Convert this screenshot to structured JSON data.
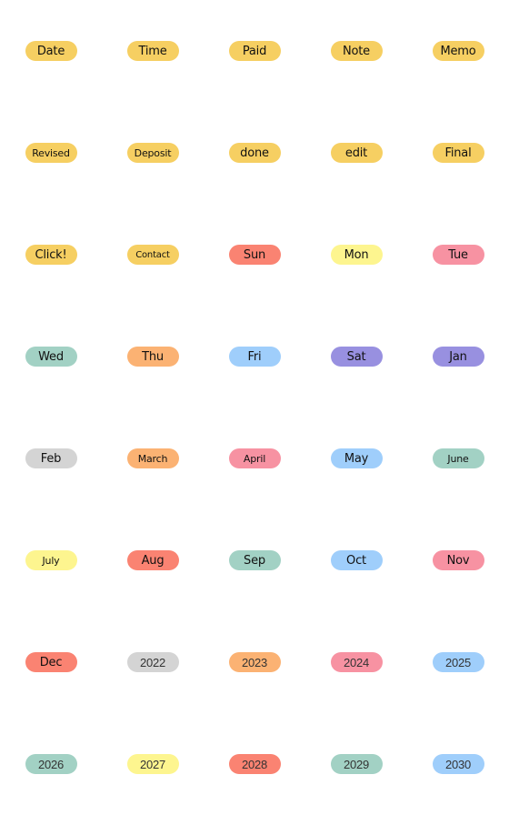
{
  "colors": {
    "yellow_orange": "#f6cf62",
    "salmon": "#fa8372",
    "light_yellow": "#fdf58f",
    "pink": "#f792a2",
    "teal": "#a2d1c4",
    "orange": "#fbb273",
    "light_blue": "#9fcefb",
    "purple": "#9890e0",
    "gray": "#d4d4d4"
  },
  "stickers": [
    {
      "label": "Date",
      "color": "#f6cf62"
    },
    {
      "label": "Time",
      "color": "#f6cf62"
    },
    {
      "label": "Paid",
      "color": "#f6cf62"
    },
    {
      "label": "Note",
      "color": "#f6cf62"
    },
    {
      "label": "Memo",
      "color": "#f6cf62"
    },
    {
      "label": "Revised",
      "color": "#f6cf62"
    },
    {
      "label": "Deposit",
      "color": "#f6cf62"
    },
    {
      "label": "done",
      "color": "#f6cf62"
    },
    {
      "label": "edit",
      "color": "#f6cf62"
    },
    {
      "label": "Final",
      "color": "#f6cf62"
    },
    {
      "label": "Click!",
      "color": "#f6cf62"
    },
    {
      "label": "Contact",
      "color": "#f6cf62"
    },
    {
      "label": "Sun",
      "color": "#fa8372"
    },
    {
      "label": "Mon",
      "color": "#fdf58f"
    },
    {
      "label": "Tue",
      "color": "#f792a2"
    },
    {
      "label": "Wed",
      "color": "#a2d1c4"
    },
    {
      "label": "Thu",
      "color": "#fbb273"
    },
    {
      "label": "Fri",
      "color": "#9fcefb"
    },
    {
      "label": "Sat",
      "color": "#9890e0"
    },
    {
      "label": "Jan",
      "color": "#9890e0"
    },
    {
      "label": "Feb",
      "color": "#d4d4d4"
    },
    {
      "label": "March",
      "color": "#fbb273"
    },
    {
      "label": "April",
      "color": "#f792a2"
    },
    {
      "label": "May",
      "color": "#9fcefb"
    },
    {
      "label": "June",
      "color": "#a2d1c4"
    },
    {
      "label": "July",
      "color": "#fdf58f"
    },
    {
      "label": "Aug",
      "color": "#fa8372"
    },
    {
      "label": "Sep",
      "color": "#a2d1c4"
    },
    {
      "label": "Oct",
      "color": "#9fcefb"
    },
    {
      "label": "Nov",
      "color": "#f792a2"
    },
    {
      "label": "Dec",
      "color": "#fa8372"
    },
    {
      "label": "2022",
      "color": "#d4d4d4"
    },
    {
      "label": "2023",
      "color": "#fbb273"
    },
    {
      "label": "2024",
      "color": "#f792a2"
    },
    {
      "label": "2025",
      "color": "#9fcefb"
    },
    {
      "label": "2026",
      "color": "#a2d1c4"
    },
    {
      "label": "2027",
      "color": "#fdf58f"
    },
    {
      "label": "2028",
      "color": "#fa8372"
    },
    {
      "label": "2029",
      "color": "#a2d1c4"
    },
    {
      "label": "2030",
      "color": "#9fcefb"
    }
  ]
}
